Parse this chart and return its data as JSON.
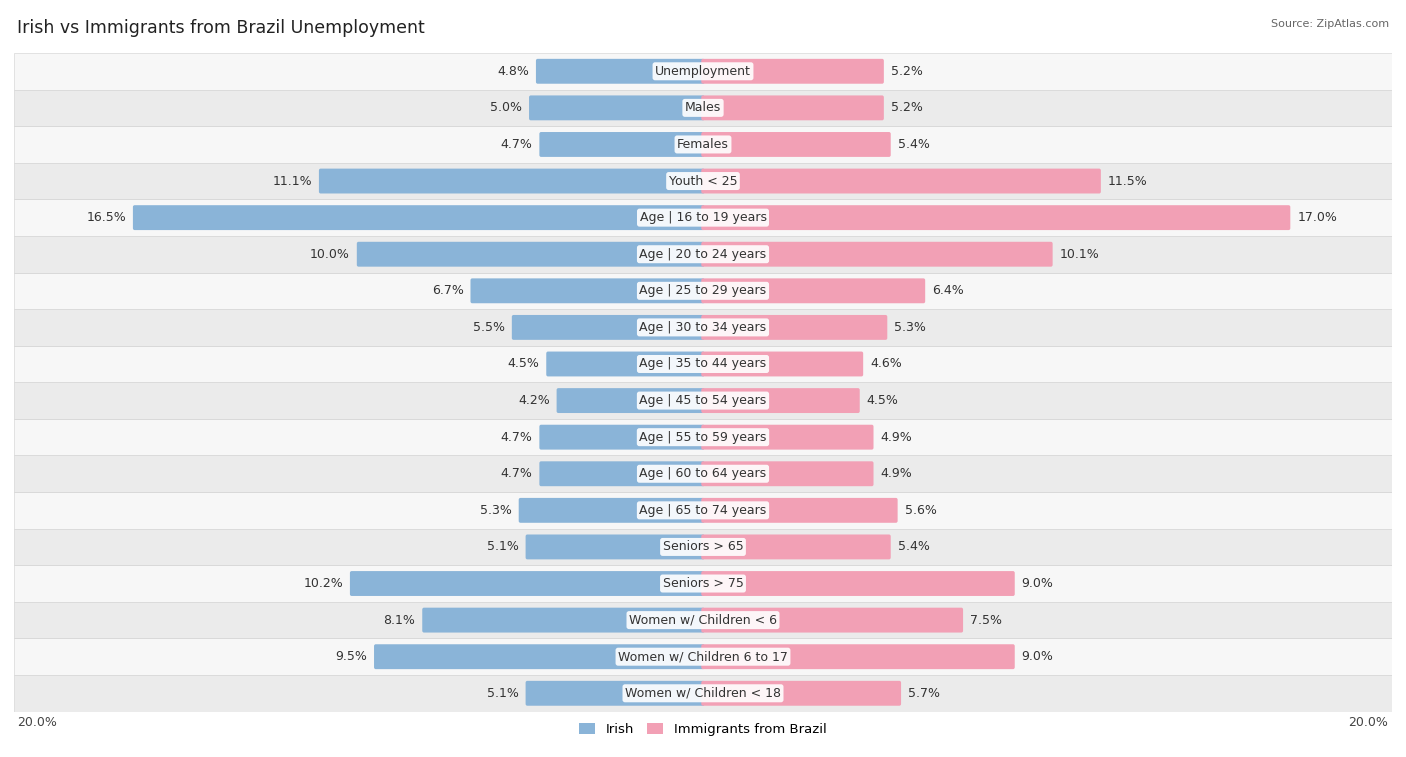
{
  "title": "Irish vs Immigrants from Brazil Unemployment",
  "source": "Source: ZipAtlas.com",
  "categories": [
    "Unemployment",
    "Males",
    "Females",
    "Youth < 25",
    "Age | 16 to 19 years",
    "Age | 20 to 24 years",
    "Age | 25 to 29 years",
    "Age | 30 to 34 years",
    "Age | 35 to 44 years",
    "Age | 45 to 54 years",
    "Age | 55 to 59 years",
    "Age | 60 to 64 years",
    "Age | 65 to 74 years",
    "Seniors > 65",
    "Seniors > 75",
    "Women w/ Children < 6",
    "Women w/ Children 6 to 17",
    "Women w/ Children < 18"
  ],
  "irish_values": [
    4.8,
    5.0,
    4.7,
    11.1,
    16.5,
    10.0,
    6.7,
    5.5,
    4.5,
    4.2,
    4.7,
    4.7,
    5.3,
    5.1,
    10.2,
    8.1,
    9.5,
    5.1
  ],
  "brazil_values": [
    5.2,
    5.2,
    5.4,
    11.5,
    17.0,
    10.1,
    6.4,
    5.3,
    4.6,
    4.5,
    4.9,
    4.9,
    5.6,
    5.4,
    9.0,
    7.5,
    9.0,
    5.7
  ],
  "irish_color": "#8ab4d8",
  "brazil_color": "#f2a0b5",
  "bar_height": 0.58,
  "max_value": 20.0,
  "row_bg_light": "#f7f7f7",
  "row_bg_dark": "#ebebeb",
  "label_fontsize": 9.0,
  "value_fontsize": 9.0,
  "title_fontsize": 12.5
}
